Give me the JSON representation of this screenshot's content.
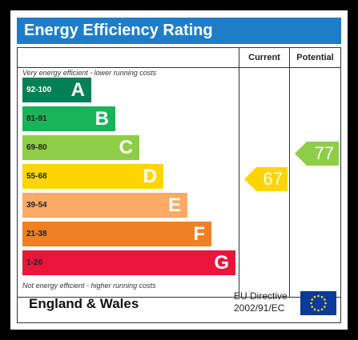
{
  "title": "Energy Efficiency Rating",
  "columns": {
    "current": "Current",
    "potential": "Potential"
  },
  "notes": {
    "top": "Very energy efficient - lower running costs",
    "bottom": "Not energy efficient - higher running costs"
  },
  "bands": [
    {
      "range": "92-100",
      "letter": "A",
      "color": "#008054"
    },
    {
      "range": "81-91",
      "letter": "B",
      "color": "#19b459"
    },
    {
      "range": "69-80",
      "letter": "C",
      "color": "#8dce46"
    },
    {
      "range": "55-68",
      "letter": "D",
      "color": "#ffd500"
    },
    {
      "range": "39-54",
      "letter": "E",
      "color": "#fcaa65"
    },
    {
      "range": "21-38",
      "letter": "F",
      "color": "#ef8023"
    },
    {
      "range": "1-20",
      "letter": "G",
      "color": "#e9153b"
    }
  ],
  "ratings": {
    "current": {
      "value": "67",
      "color": "#ffd500"
    },
    "potential": {
      "value": "77",
      "color": "#8dce46"
    }
  },
  "footer": {
    "region": "England & Wales",
    "directive_line1": "EU Directive",
    "directive_line2": "2002/91/EC"
  },
  "flag_icon": "eu-flag-icon"
}
